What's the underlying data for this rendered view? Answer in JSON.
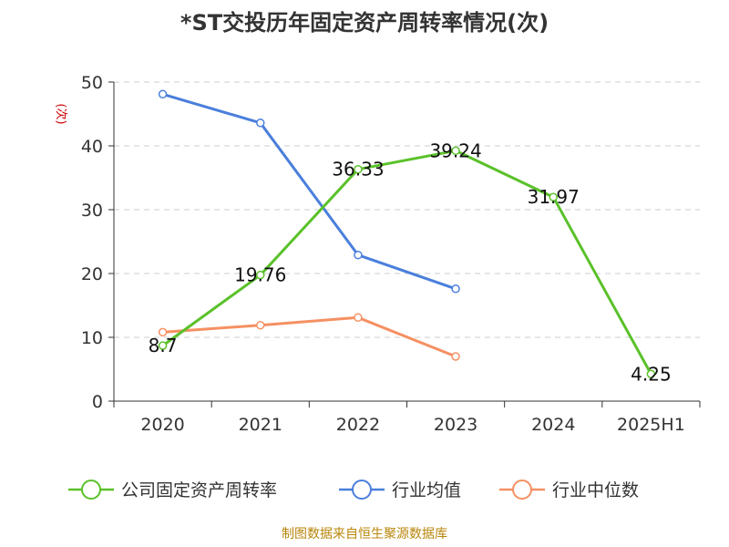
{
  "chart_data": {
    "type": "line",
    "title": "*ST交投历年固定资产周转率情况(次)",
    "ylabel": "(次)",
    "categories": [
      "2020",
      "2021",
      "2022",
      "2023",
      "2024",
      "2025H1"
    ],
    "ylim": [
      0,
      50
    ],
    "yticks": [
      0,
      10,
      20,
      30,
      40,
      50
    ],
    "grid": true,
    "legend_position": "bottom",
    "series": [
      {
        "name": "公司固定资产周转率",
        "color": "#5ac12a",
        "values": [
          8.7,
          19.76,
          36.33,
          39.24,
          31.97,
          4.25
        ],
        "labels": [
          "8.7",
          "19.76",
          "36.33",
          "39.24",
          "31.97",
          "4.25"
        ]
      },
      {
        "name": "行业均值",
        "color": "#4a7fdc",
        "values": [
          48.1,
          43.6,
          22.9,
          17.6,
          null,
          null
        ]
      },
      {
        "name": "行业中位数",
        "color": "#f59062",
        "values": [
          10.8,
          11.9,
          13.1,
          7.0,
          null,
          null
        ]
      }
    ]
  },
  "source": "制图数据来自恒生聚源数据库"
}
